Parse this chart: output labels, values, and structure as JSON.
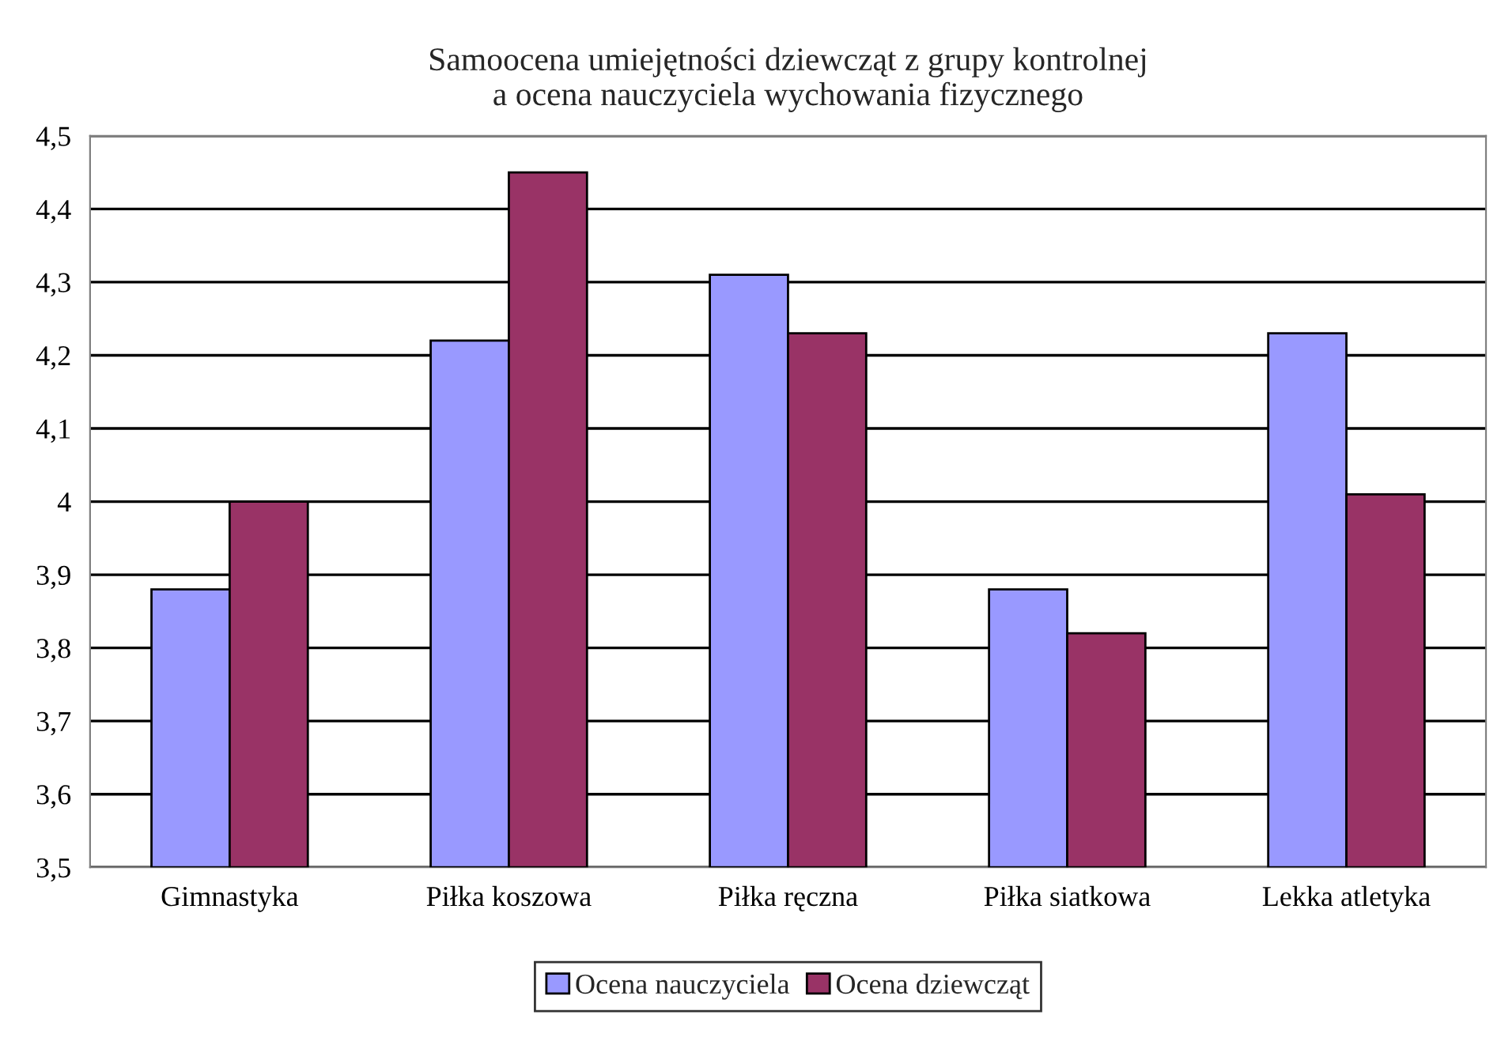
{
  "chart_data": {
    "type": "bar",
    "title": "Samoocena umiejętności dziewcząt z grupy kontrolnej\na ocena nauczyciela wychowania fizycznego",
    "categories": [
      "Gimnastyka",
      "Piłka koszowa",
      "Piłka ręczna",
      "Piłka siatkowa",
      "Lekka atletyka"
    ],
    "series": [
      {
        "name": "Ocena nauczyciela",
        "color": "#9999ff",
        "values": [
          3.88,
          4.22,
          4.31,
          3.88,
          4.23
        ]
      },
      {
        "name": "Ocena dziewcząt",
        "color": "#993366",
        "values": [
          4.0,
          4.45,
          4.23,
          3.82,
          4.01
        ]
      }
    ],
    "ylim": [
      3.5,
      4.5
    ],
    "yticks": [
      {
        "value": 3.5,
        "label": "3,5"
      },
      {
        "value": 3.6,
        "label": "3,6"
      },
      {
        "value": 3.7,
        "label": "3,7"
      },
      {
        "value": 3.8,
        "label": "3,8"
      },
      {
        "value": 3.9,
        "label": "3,9"
      },
      {
        "value": 4,
        "label": "4"
      },
      {
        "value": 4.1,
        "label": "4,1"
      },
      {
        "value": 4.2,
        "label": "4,2"
      },
      {
        "value": 4.3,
        "label": "4,3"
      },
      {
        "value": 4.4,
        "label": "4,4"
      },
      {
        "value": 4.5,
        "label": "4,5"
      }
    ],
    "grid": "y",
    "legend": "bottom"
  }
}
